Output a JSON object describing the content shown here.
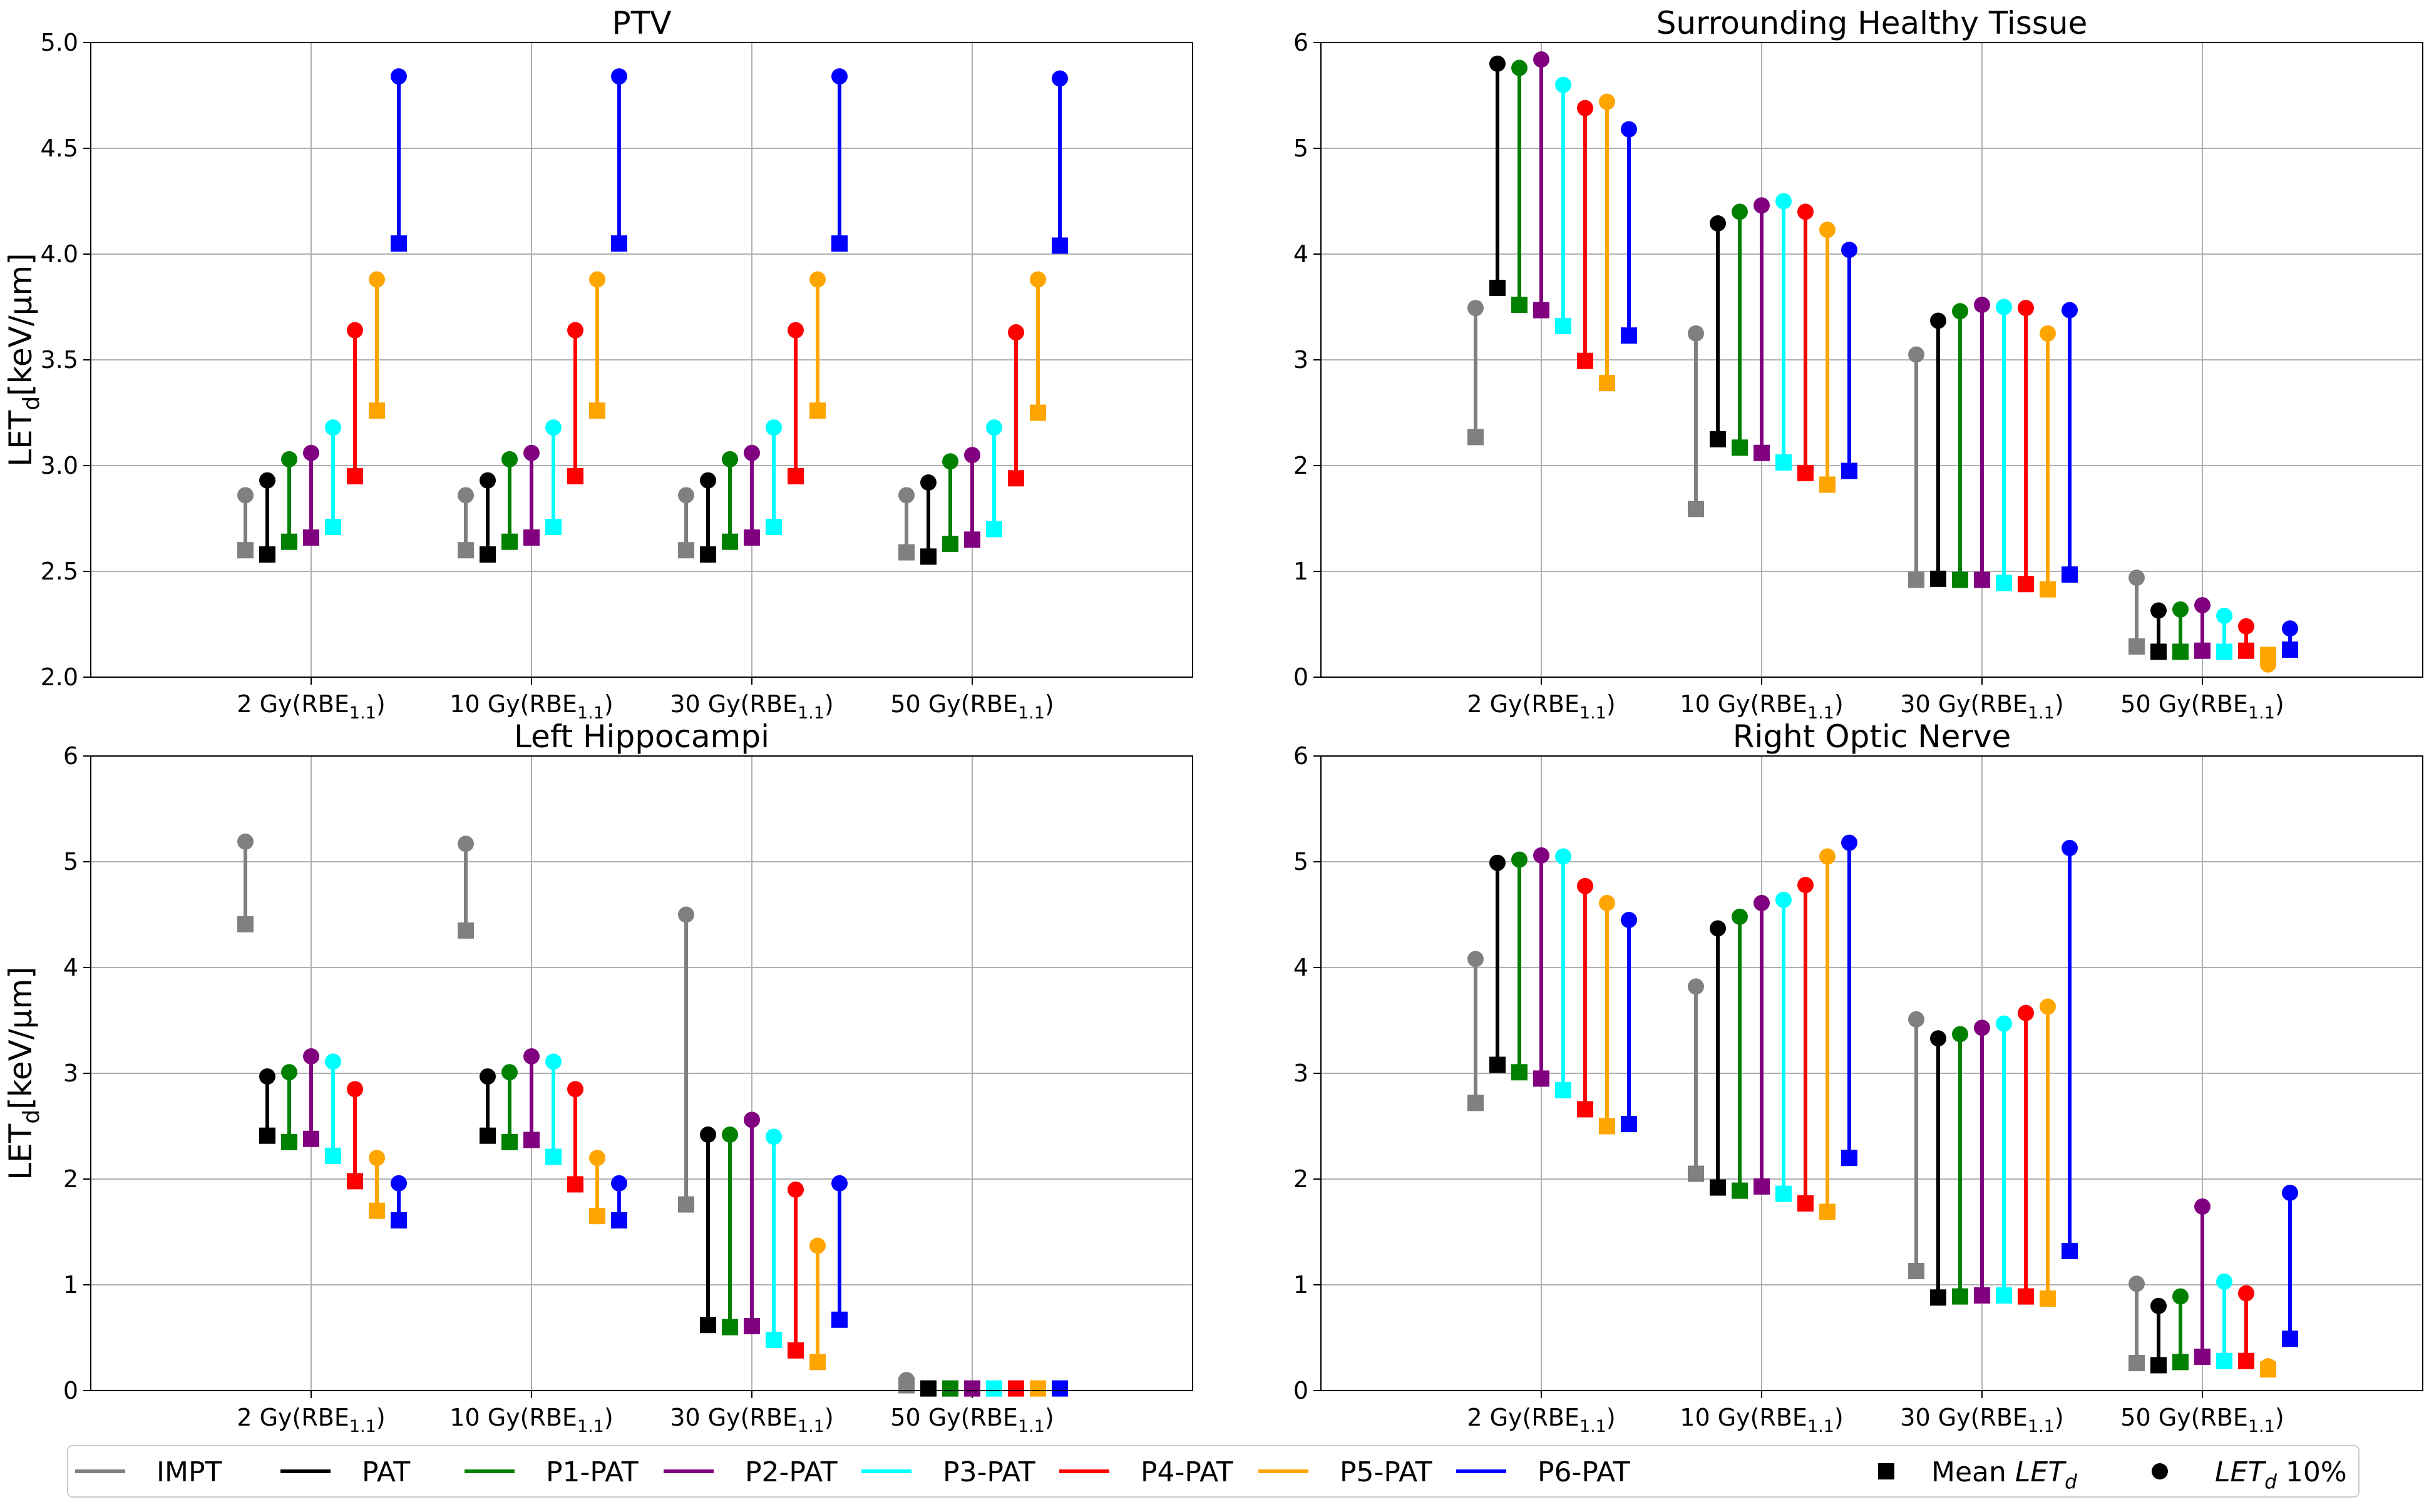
{
  "chart_data": {
    "type": "dumbbell",
    "dose_levels": [
      "2 Gy",
      "10 Gy",
      "30 Gy",
      "50 Gy"
    ],
    "dose_unit_main": "RBE",
    "dose_unit_sub": "1.1",
    "ylabel_main": "LET",
    "ylabel_sub": "d",
    "ylabel_unit": "[keV/μm]",
    "methods": [
      "IMPT",
      "PAT",
      "P1-PAT",
      "P2-PAT",
      "P3-PAT",
      "P4-PAT",
      "P5-PAT",
      "P6-PAT"
    ],
    "colors": [
      "#808080",
      "#000000",
      "#008000",
      "#800080",
      "#00ffff",
      "#ff0000",
      "#ffa500",
      "#0000ff"
    ],
    "legend": {
      "mean_marker_label_prefix": "Mean ",
      "mean_marker_label_let": "LET",
      "mean_marker_label_sub": "d",
      "p10_marker_label_let": "LET",
      "p10_marker_label_sub": "d",
      "p10_marker_label_suffix": " 10%"
    },
    "panels": [
      {
        "title": "PTV",
        "ylim": [
          2.0,
          5.0
        ],
        "yticks": [
          2.0,
          2.5,
          3.0,
          3.5,
          4.0,
          4.5,
          5.0
        ],
        "ytick_labels": [
          "2.0",
          "2.5",
          "3.0",
          "3.5",
          "4.0",
          "4.5",
          "5.0"
        ],
        "show_ylabel": true,
        "mean": [
          [
            2.6,
            2.58,
            2.64,
            2.66,
            2.71,
            2.95,
            3.26,
            4.05
          ],
          [
            2.6,
            2.58,
            2.64,
            2.66,
            2.71,
            2.95,
            3.26,
            4.05
          ],
          [
            2.6,
            2.58,
            2.64,
            2.66,
            2.71,
            2.95,
            3.26,
            4.05
          ],
          [
            2.59,
            2.57,
            2.63,
            2.65,
            2.7,
            2.94,
            3.25,
            4.04
          ]
        ],
        "p10": [
          [
            2.86,
            2.93,
            3.03,
            3.06,
            3.18,
            3.64,
            3.88,
            4.84
          ],
          [
            2.86,
            2.93,
            3.03,
            3.06,
            3.18,
            3.64,
            3.88,
            4.84
          ],
          [
            2.86,
            2.93,
            3.03,
            3.06,
            3.18,
            3.64,
            3.88,
            4.84
          ],
          [
            2.86,
            2.92,
            3.02,
            3.05,
            3.18,
            3.63,
            3.88,
            4.83
          ]
        ]
      },
      {
        "title": "Surrounding Healthy Tissue",
        "ylim": [
          0,
          6
        ],
        "yticks": [
          0,
          1,
          2,
          3,
          4,
          5,
          6
        ],
        "ytick_labels": [
          "0",
          "1",
          "2",
          "3",
          "4",
          "5",
          "6"
        ],
        "show_ylabel": false,
        "mean": [
          [
            2.27,
            3.68,
            3.52,
            3.47,
            3.32,
            2.99,
            2.78,
            3.23
          ],
          [
            1.59,
            2.25,
            2.17,
            2.12,
            2.03,
            1.93,
            1.82,
            1.95
          ],
          [
            0.92,
            0.93,
            0.92,
            0.92,
            0.89,
            0.88,
            0.83,
            0.97
          ],
          [
            0.29,
            0.24,
            0.24,
            0.25,
            0.24,
            0.25,
            0.21,
            0.26
          ]
        ],
        "p10": [
          [
            3.49,
            5.8,
            5.76,
            5.84,
            5.6,
            5.38,
            5.44,
            5.18
          ],
          [
            3.25,
            4.29,
            4.4,
            4.46,
            4.5,
            4.4,
            4.23,
            4.04
          ],
          [
            3.05,
            3.37,
            3.46,
            3.52,
            3.5,
            3.49,
            3.25,
            3.47
          ],
          [
            0.94,
            0.63,
            0.64,
            0.68,
            0.58,
            0.48,
            0.12,
            0.46
          ]
        ]
      },
      {
        "title": "Left Hippocampi",
        "ylim": [
          0,
          6
        ],
        "yticks": [
          0,
          1,
          2,
          3,
          4,
          5,
          6
        ],
        "ytick_labels": [
          "0",
          "1",
          "2",
          "3",
          "4",
          "5",
          "6"
        ],
        "show_ylabel": true,
        "mean": [
          [
            4.41,
            2.41,
            2.35,
            2.38,
            2.22,
            1.98,
            1.7,
            1.61
          ],
          [
            4.35,
            2.41,
            2.35,
            2.37,
            2.21,
            1.95,
            1.65,
            1.61
          ],
          [
            1.76,
            0.62,
            0.6,
            0.61,
            0.48,
            0.38,
            0.27,
            0.67
          ],
          [
            0.05,
            0.02,
            0.02,
            0.02,
            0.02,
            0.02,
            0.02,
            0.02
          ]
        ],
        "p10": [
          [
            5.19,
            2.97,
            3.01,
            3.16,
            3.11,
            2.85,
            2.2,
            1.96
          ],
          [
            5.17,
            2.97,
            3.01,
            3.16,
            3.11,
            2.85,
            2.2,
            1.96
          ],
          [
            4.5,
            2.42,
            2.42,
            2.56,
            2.4,
            1.9,
            1.37,
            1.96
          ],
          [
            0.1,
            0.02,
            0.02,
            0.02,
            0.02,
            0.02,
            0.02,
            0.02
          ]
        ]
      },
      {
        "title": "Right Optic Nerve",
        "ylim": [
          0,
          6
        ],
        "yticks": [
          0,
          1,
          2,
          3,
          4,
          5,
          6
        ],
        "ytick_labels": [
          "0",
          "1",
          "2",
          "3",
          "4",
          "5",
          "6"
        ],
        "show_ylabel": false,
        "mean": [
          [
            2.72,
            3.08,
            3.01,
            2.95,
            2.84,
            2.66,
            2.5,
            2.52
          ],
          [
            2.05,
            1.92,
            1.89,
            1.93,
            1.86,
            1.77,
            1.69,
            2.2
          ],
          [
            1.13,
            0.88,
            0.89,
            0.9,
            0.9,
            0.89,
            0.87,
            1.32
          ],
          [
            0.26,
            0.24,
            0.27,
            0.32,
            0.28,
            0.28,
            0.2,
            0.49
          ]
        ],
        "p10": [
          [
            4.08,
            4.99,
            5.02,
            5.06,
            5.05,
            4.77,
            4.61,
            4.45
          ],
          [
            3.82,
            4.37,
            4.48,
            4.61,
            4.64,
            4.78,
            5.05,
            5.18
          ],
          [
            3.51,
            3.33,
            3.37,
            3.43,
            3.47,
            3.57,
            3.63,
            5.13
          ],
          [
            1.01,
            0.8,
            0.89,
            1.74,
            1.03,
            0.92,
            0.23,
            1.87
          ]
        ]
      }
    ]
  }
}
